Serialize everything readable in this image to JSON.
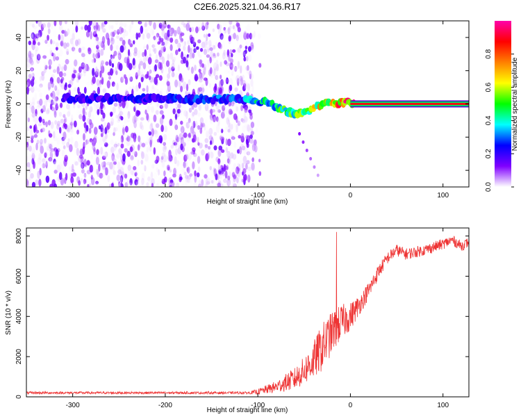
{
  "title": "C2E6.2025.321.04.36.R17",
  "chart_data": [
    {
      "type": "heatmap",
      "name": "spectrogram",
      "xlabel": "Height of straight line (km)",
      "ylabel": "Frequency (Hz)",
      "xlim": [
        -350,
        128
      ],
      "ylim": [
        -50,
        50
      ],
      "xticks": [
        -300,
        -200,
        -100,
        0,
        100
      ],
      "yticks": [
        -40,
        -20,
        0,
        20,
        40
      ],
      "xtick_labels": [
        "-300",
        "-200",
        "-100",
        "0",
        "100"
      ],
      "ytick_labels": [
        "-40",
        "-20",
        "0",
        "20",
        "40"
      ],
      "noise_region_end_km": -105,
      "signal_band": {
        "center_hz": [
          [
            -300,
            3
          ],
          [
            -200,
            3
          ],
          [
            -140,
            3
          ],
          [
            -110,
            3
          ],
          [
            -90,
            1
          ],
          [
            -75,
            -3
          ],
          [
            -60,
            -6
          ],
          [
            -45,
            -4
          ],
          [
            -30,
            0
          ],
          [
            -15,
            1
          ],
          [
            0,
            1
          ],
          [
            128,
            0
          ]
        ],
        "halfwidth_hz": 2,
        "amplitude": [
          [
            -300,
            0.2
          ],
          [
            -200,
            0.25
          ],
          [
            -120,
            0.3
          ],
          [
            -100,
            0.4
          ],
          [
            -70,
            0.5
          ],
          [
            -40,
            0.6
          ],
          [
            -10,
            0.8
          ],
          [
            10,
            0.95
          ],
          [
            128,
            0.95
          ]
        ]
      },
      "colorbar": {
        "label": "Normalized spectral amplitude",
        "ticks": [
          0.0,
          0.2,
          0.4,
          0.6,
          0.8
        ],
        "tick_labels": [
          "0.0",
          "0.2",
          "0.4",
          "0.6",
          "0.8"
        ],
        "range": [
          0,
          1
        ],
        "colors": [
          "#ffffff",
          "#8000ff",
          "#0000ff",
          "#00ffff",
          "#00ff00",
          "#ffff00",
          "#ff8000",
          "#ff0000",
          "#ff00aa"
        ]
      }
    },
    {
      "type": "line",
      "name": "snr",
      "xlabel": "Height of straight line (km)",
      "ylabel": "SNR (10 * v/v)",
      "xlim": [
        -350,
        128
      ],
      "ylim": [
        0,
        8400
      ],
      "xticks": [
        -300,
        -200,
        -100,
        0,
        100
      ],
      "yticks": [
        0,
        2000,
        4000,
        6000,
        8000
      ],
      "xtick_labels": [
        "-300",
        "-200",
        "-100",
        "0",
        "100"
      ],
      "ytick_labels": [
        "0",
        "2000",
        "4000",
        "6000",
        "8000"
      ],
      "color": "#ee3333",
      "trend": {
        "x": [
          -350,
          -110,
          -100,
          -80,
          -60,
          -50,
          -40,
          -30,
          -20,
          -10,
          0,
          10,
          20,
          30,
          40,
          50,
          60,
          80,
          100,
          110,
          120,
          128
        ],
        "y": [
          200,
          200,
          250,
          500,
          900,
          1300,
          1800,
          2500,
          3200,
          3700,
          4000,
          4600,
          5300,
          6200,
          6900,
          7300,
          7100,
          7300,
          7600,
          7800,
          7500,
          7700
        ]
      },
      "noise_amplitude": {
        "x": [
          -350,
          -110,
          -80,
          -50,
          -30,
          -10,
          10,
          40,
          128
        ],
        "y": [
          60,
          60,
          300,
          700,
          1200,
          900,
          500,
          300,
          250
        ]
      },
      "spike": {
        "x": -15,
        "y": 8200
      }
    }
  ]
}
